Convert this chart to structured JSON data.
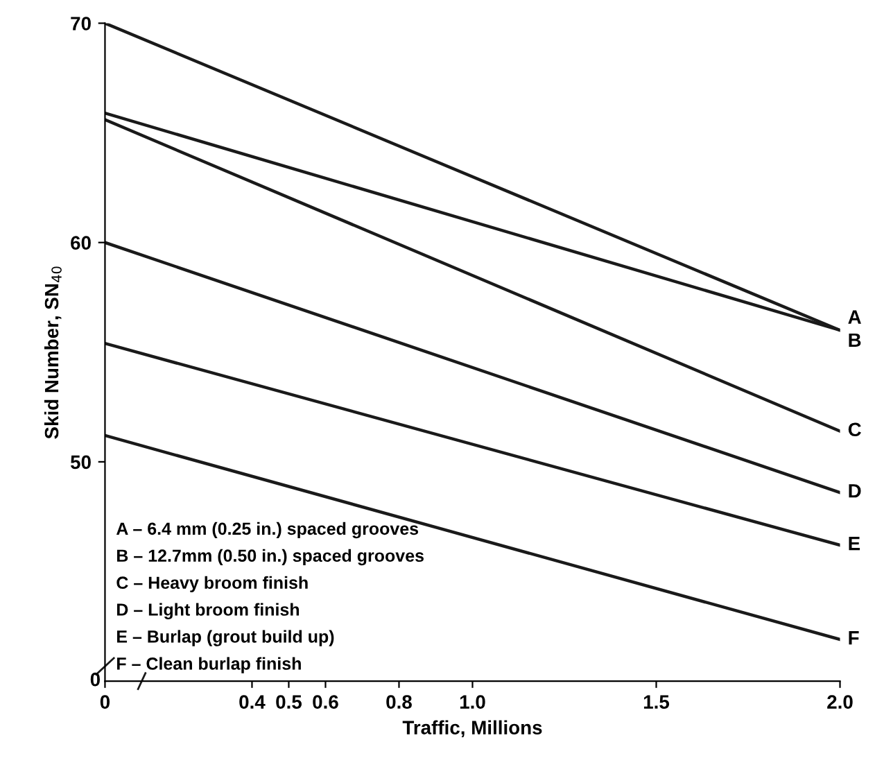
{
  "chart_data": [
    {
      "type": "line",
      "ylabel": "Skid Number, SN$_{40}$",
      "x": [
        0,
        2.0
      ],
      "series": [
        {
          "name": "A",
          "color": "#1a1a1a",
          "values": [
            70,
            56
          ]
        },
        {
          "name": "B",
          "color": "#1a1a1a",
          "values": [
            65.9,
            56
          ]
        },
        {
          "name": "C",
          "color": "#1a1a1a",
          "values": [
            65.6,
            51.4
          ]
        },
        {
          "name": "D",
          "color": "#1a1a1a",
          "values": [
            60,
            48.6
          ]
        },
        {
          "name": "E",
          "color": "#1a1a1a",
          "values": [
            55.4,
            46.2
          ]
        },
        {
          "name": "F",
          "color": "#1a1a1a",
          "values": [
            51.2,
            41.9
          ]
        }
      ],
      "xlabel": "Traffic, Millions",
      "xlim": [
        0,
        2.0
      ],
      "xticks": [
        0,
        0.4,
        0.5,
        0.6,
        0.8,
        {
          "value": 1.0,
          "label": "1.0"
        },
        1.5,
        {
          "value": 2.0,
          "label": "2.0"
        }
      ],
      "ylim": [
        40,
        70
      ],
      "yticks": [
        50,
        60,
        70
      ],
      "grid": false,
      "legend": false,
      "marker": "none",
      "line_style": "solid",
      "annotations": [
        "A – 6.4 mm (0.25 in.) spaced grooves",
        "B – 12.7mm (0.50 in.) spaced grooves",
        "C – Heavy broom finish",
        "D – Light broom finish",
        "E – Burlap (grout build up)",
        "F – Clean burlap finish"
      ]
    },
    {
      "type": "other",
      "annotations": [
        "0"
      ]
    }
  ]
}
